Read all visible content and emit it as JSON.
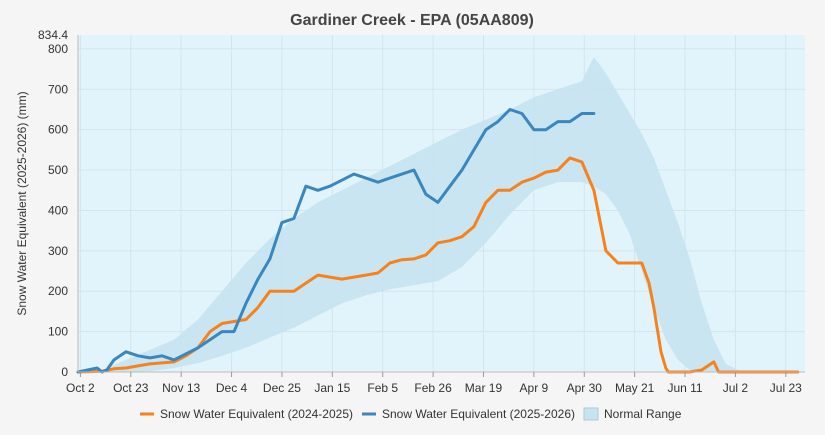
{
  "chart_data": {
    "type": "line",
    "title": "Gardiner Creek - EPA (05AA809)",
    "ylabel": "Snow Water Equivalent (2025-2026) (mm)",
    "xlabel": "",
    "ylim": [
      0,
      834.4
    ],
    "ymax_label": "834.4",
    "yticks": [
      0,
      100,
      200,
      300,
      400,
      500,
      600,
      700,
      800
    ],
    "xlim": [
      "Oct 1",
      "Jul 31"
    ],
    "xticks": [
      {
        "label": "Oct 2",
        "day": 1
      },
      {
        "label": "Oct 23",
        "day": 22
      },
      {
        "label": "Nov 13",
        "day": 43
      },
      {
        "label": "Dec 4",
        "day": 64
      },
      {
        "label": "Dec 25",
        "day": 85
      },
      {
        "label": "Jan 15",
        "day": 106
      },
      {
        "label": "Feb 5",
        "day": 127
      },
      {
        "label": "Feb 26",
        "day": 148
      },
      {
        "label": "Mar 19",
        "day": 169
      },
      {
        "label": "Apr 9",
        "day": 190
      },
      {
        "label": "Apr 30",
        "day": 211
      },
      {
        "label": "May 21",
        "day": 232
      },
      {
        "label": "Jun 11",
        "day": 253
      },
      {
        "label": "Jul 2",
        "day": 274
      },
      {
        "label": "Jul 23",
        "day": 295
      }
    ],
    "grid": true,
    "legend_position": "bottom",
    "colors": {
      "plot_bg": "#e1f4fc",
      "range_fill": "#c6e3ef",
      "series_2024": "#f7821b",
      "series_2025": "#3a87c0",
      "grid": "#d4e4ec"
    },
    "normal_range": {
      "name": "Normal Range",
      "day": [
        0,
        10,
        20,
        30,
        40,
        50,
        60,
        70,
        80,
        90,
        100,
        110,
        120,
        130,
        140,
        150,
        160,
        170,
        180,
        190,
        200,
        210,
        215,
        220,
        225,
        230,
        235,
        240,
        245,
        250,
        255,
        260,
        265,
        270,
        275,
        280
      ],
      "low": [
        0,
        0,
        0,
        2,
        10,
        22,
        40,
        60,
        85,
        110,
        140,
        170,
        190,
        205,
        215,
        225,
        260,
        320,
        390,
        450,
        470,
        470,
        460,
        440,
        400,
        340,
        250,
        160,
        80,
        30,
        5,
        0,
        0,
        0,
        0,
        0
      ],
      "high": [
        0,
        5,
        30,
        55,
        80,
        130,
        200,
        270,
        330,
        380,
        420,
        450,
        480,
        510,
        540,
        570,
        600,
        625,
        650,
        680,
        700,
        720,
        780,
        740,
        690,
        640,
        590,
        530,
        450,
        370,
        280,
        170,
        80,
        20,
        5,
        0
      ]
    },
    "series": [
      {
        "name": "Snow Water Equivalent (2024-2025)",
        "day": [
          0,
          10,
          15,
          20,
          25,
          30,
          40,
          45,
          50,
          55,
          60,
          65,
          70,
          75,
          80,
          85,
          90,
          95,
          100,
          105,
          110,
          115,
          120,
          125,
          130,
          135,
          140,
          145,
          150,
          155,
          160,
          165,
          170,
          175,
          180,
          185,
          190,
          195,
          200,
          205,
          210,
          215,
          220,
          225,
          230,
          235,
          238,
          240,
          243,
          245,
          246,
          250,
          255,
          260,
          265,
          267,
          270,
          280,
          300
        ],
        "value": [
          0,
          2,
          8,
          10,
          15,
          20,
          25,
          40,
          60,
          100,
          120,
          125,
          130,
          160,
          200,
          200,
          200,
          220,
          240,
          235,
          230,
          235,
          240,
          245,
          270,
          278,
          280,
          290,
          320,
          325,
          335,
          360,
          420,
          450,
          450,
          470,
          480,
          495,
          500,
          530,
          520,
          450,
          300,
          270,
          270,
          270,
          220,
          160,
          50,
          10,
          0,
          0,
          0,
          5,
          25,
          0,
          0,
          0,
          0
        ]
      },
      {
        "name": "Snow Water Equivalent (2025-2026)",
        "day": [
          0,
          8,
          10,
          12,
          15,
          20,
          25,
          30,
          35,
          40,
          45,
          50,
          55,
          60,
          65,
          70,
          75,
          80,
          85,
          90,
          95,
          100,
          105,
          110,
          115,
          120,
          125,
          130,
          135,
          140,
          145,
          150,
          155,
          160,
          165,
          170,
          175,
          180,
          185,
          190,
          195,
          200,
          205,
          210,
          215
        ],
        "value": [
          0,
          10,
          0,
          5,
          30,
          50,
          40,
          35,
          40,
          30,
          45,
          60,
          80,
          100,
          100,
          170,
          230,
          280,
          370,
          380,
          460,
          450,
          460,
          475,
          490,
          480,
          470,
          480,
          490,
          500,
          440,
          420,
          460,
          500,
          550,
          600,
          620,
          650,
          640,
          600,
          600,
          620,
          620,
          640,
          640
        ]
      }
    ],
    "legend": [
      {
        "label": "Snow Water Equivalent (2024-2025)",
        "kind": "line",
        "color": "#f7821b"
      },
      {
        "label": "Snow Water Equivalent (2025-2026)",
        "kind": "line",
        "color": "#3a87c0"
      },
      {
        "label": "Normal Range",
        "kind": "area",
        "color": "#c6e3ef"
      }
    ]
  }
}
